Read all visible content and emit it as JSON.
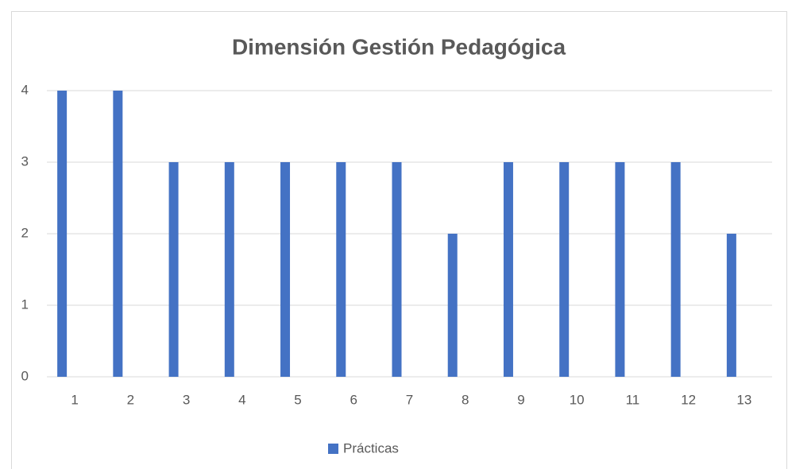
{
  "chart_data": {
    "type": "bar",
    "title": "Dimensión Gestión Pedagógica",
    "categories": [
      "1",
      "2",
      "3",
      "4",
      "5",
      "6",
      "7",
      "8",
      "9",
      "10",
      "11",
      "12",
      "13"
    ],
    "series": [
      {
        "name": "Prácticas",
        "color": "#4472c4",
        "values": [
          4,
          4,
          3,
          3,
          3,
          3,
          3,
          2,
          3,
          3,
          3,
          3,
          2
        ]
      }
    ],
    "ylim": [
      0,
      4
    ],
    "yticks": [
      0,
      1,
      2,
      3,
      4
    ],
    "grid": true,
    "legend": "bottom"
  }
}
